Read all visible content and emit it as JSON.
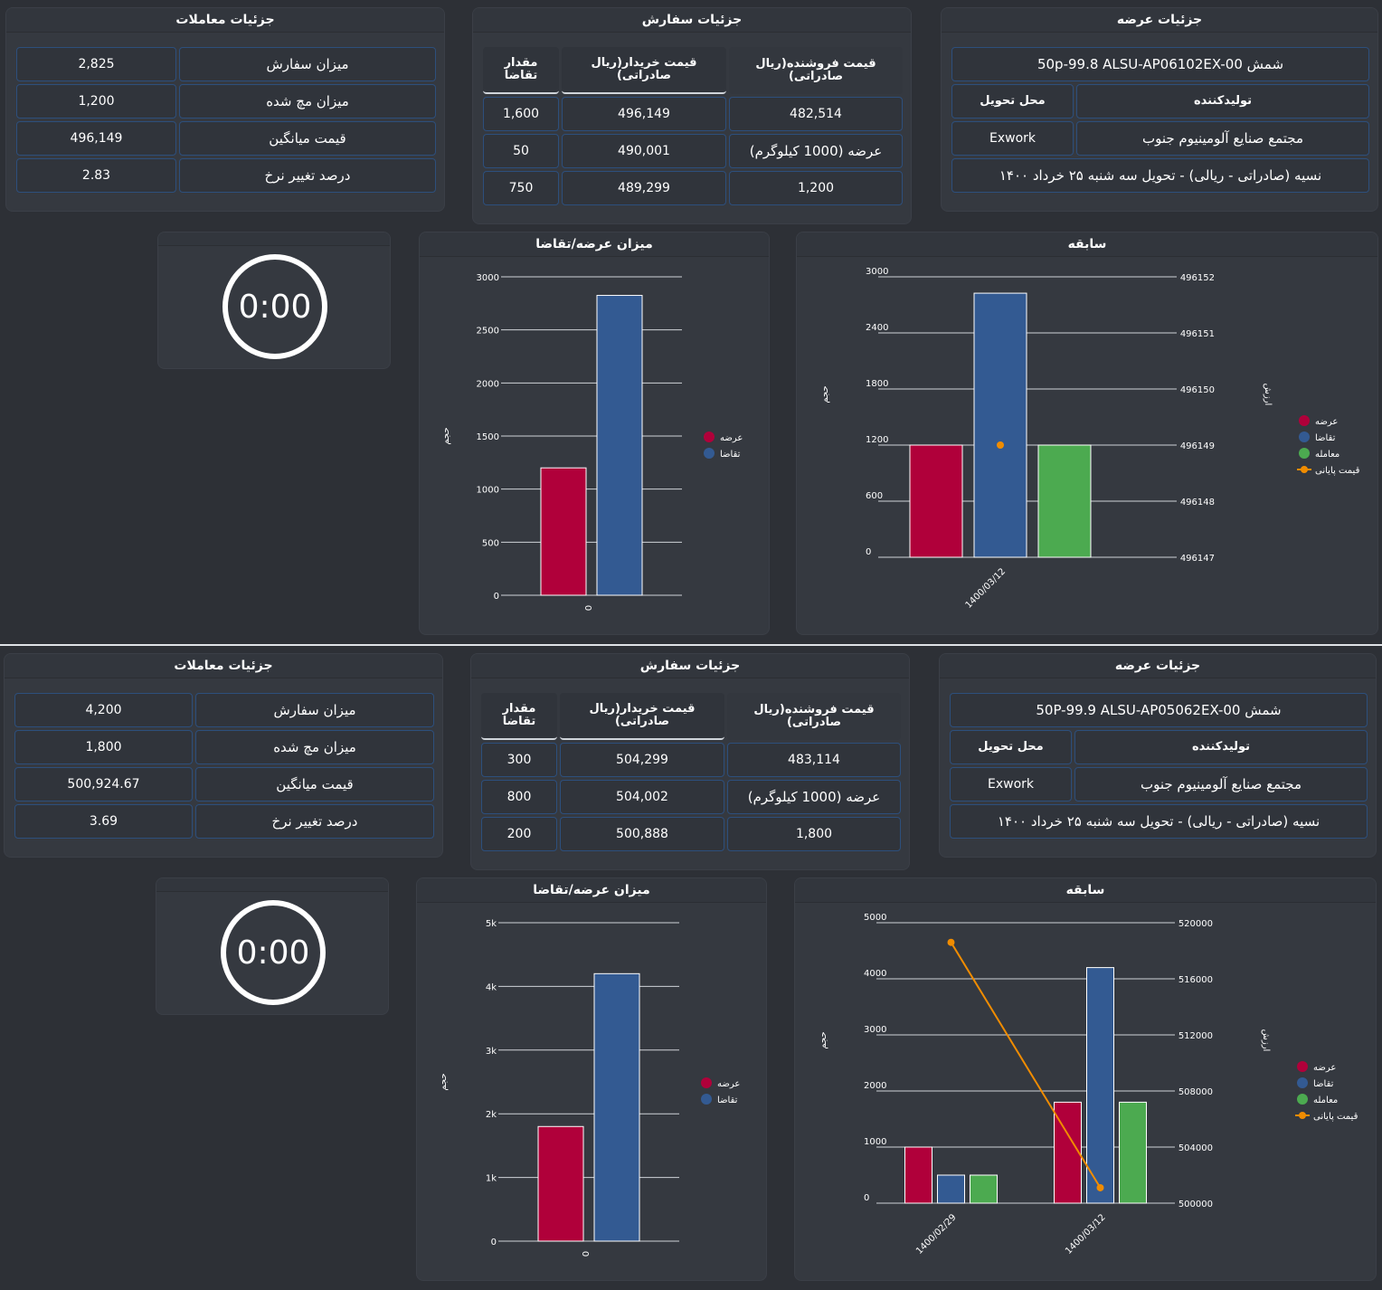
{
  "sections": [
    {
      "trade": {
        "title": "جزئیات معاملات",
        "rows": [
          {
            "label": "میزان سفارش",
            "value": "2,825"
          },
          {
            "label": "میزان مچ شده",
            "value": "1,200"
          },
          {
            "label": "قیمت میانگین",
            "value": "496,149"
          },
          {
            "label": "درصد تغییر نرخ",
            "value": "2.83"
          }
        ]
      },
      "order": {
        "title": "جزئیات سفارش",
        "headers": [
          "قیمت فروشنده(ریال صادراتی)",
          "قیمت خریدار(ریال صادراتی)",
          "مقدار تقاضا"
        ],
        "rows": [
          [
            "482,514",
            "496,149",
            "1,600"
          ],
          [
            "عرضه (1000 کیلوگرم)",
            "490,001",
            "50"
          ],
          [
            "1,200",
            "489,299",
            "750"
          ]
        ]
      },
      "offer": {
        "title": "جزئیات عرضه",
        "product": "شمش 50p-99.8 ALSU-AP06102EX-00",
        "producer_label": "تولیدکننده",
        "delivery_label": "محل تحویل",
        "producer": "مجتمع صنایع آلومینیوم جنوب",
        "delivery": "Exwork",
        "terms": "نسیه (صادراتی - ریالی) - تحویل سه شنبه ۲۵ خرداد ۱۴۰۰"
      },
      "timer": {
        "value": "0:00"
      },
      "supply_demand": {
        "title": "میزان عرضه/تقاضا",
        "chart_data": {
          "type": "bar",
          "categories": [
            "0"
          ],
          "series": [
            {
              "name": "عرضه",
              "values": [
                1200
              ],
              "color": "#b0003a"
            },
            {
              "name": "تقاضا",
              "values": [
                2825
              ],
              "color": "#335a92"
            }
          ],
          "ylabel": "حجم",
          "yticks": [
            "0",
            "500",
            "1000",
            "1500",
            "2000",
            "2500",
            "3000"
          ],
          "ylim": [
            0,
            3000
          ],
          "legend": "right"
        }
      },
      "history": {
        "title": "سابقه",
        "chart_data": {
          "type": "bar",
          "categories": [
            "1400/03/12"
          ],
          "series": [
            {
              "name": "عرضه",
              "values": [
                1200
              ],
              "color": "#b0003a"
            },
            {
              "name": "تقاضا",
              "values": [
                2825
              ],
              "color": "#335a92"
            },
            {
              "name": "معامله",
              "values": [
                1200
              ],
              "color": "#4caa50"
            },
            {
              "name": "قیمت پایانی",
              "type": "line",
              "axis": "right",
              "values": [
                496149
              ],
              "color": "#f08c00"
            }
          ],
          "ylabel": "حجم",
          "y2label": "ارزش",
          "yticks": [
            "0",
            "600",
            "1200",
            "1800",
            "2400",
            "3000"
          ],
          "ylim": [
            0,
            3000
          ],
          "y2ticks": [
            "496147",
            "496148",
            "496149",
            "496150",
            "496151",
            "496152"
          ],
          "y2lim": [
            496147,
            496152
          ],
          "legend": "right"
        }
      }
    },
    {
      "trade": {
        "title": "جزئیات معاملات",
        "rows": [
          {
            "label": "میزان سفارش",
            "value": "4,200"
          },
          {
            "label": "میزان مچ شده",
            "value": "1,800"
          },
          {
            "label": "قیمت میانگین",
            "value": "500,924.67"
          },
          {
            "label": "درصد تغییر نرخ",
            "value": "3.69"
          }
        ]
      },
      "order": {
        "title": "جزئیات سفارش",
        "headers": [
          "قیمت فروشنده(ریال صادراتی)",
          "قیمت خریدار(ریال صادراتی)",
          "مقدار تقاضا"
        ],
        "rows": [
          [
            "483,114",
            "504,299",
            "300"
          ],
          [
            "عرضه (1000 کیلوگرم)",
            "504,002",
            "800"
          ],
          [
            "1,800",
            "500,888",
            "200"
          ]
        ]
      },
      "offer": {
        "title": "جزئیات عرضه",
        "product": "شمش 50P-99.9 ALSU-AP05062EX-00",
        "producer_label": "تولیدکننده",
        "delivery_label": "محل تحویل",
        "producer": "مجتمع صنایع آلومینیوم جنوب",
        "delivery": "Exwork",
        "terms": "نسیه (صادراتی - ریالی) - تحویل سه شنبه ۲۵ خرداد ۱۴۰۰"
      },
      "timer": {
        "value": "0:00"
      },
      "supply_demand": {
        "title": "میزان عرضه/تقاضا",
        "chart_data": {
          "type": "bar",
          "categories": [
            "0"
          ],
          "series": [
            {
              "name": "عرضه",
              "values": [
                1800
              ],
              "color": "#b0003a"
            },
            {
              "name": "تقاضا",
              "values": [
                4200
              ],
              "color": "#335a92"
            }
          ],
          "ylabel": "حجم",
          "yticks": [
            "0",
            "1k",
            "2k",
            "3k",
            "4k",
            "5k"
          ],
          "ylim": [
            0,
            5000
          ],
          "legend": "right"
        }
      },
      "history": {
        "title": "سابقه",
        "chart_data": {
          "type": "bar",
          "categories": [
            "1400/02/29",
            "1400/03/12"
          ],
          "series": [
            {
              "name": "عرضه",
              "values": [
                1000,
                1800
              ],
              "color": "#b0003a"
            },
            {
              "name": "تقاضا",
              "values": [
                500,
                4200
              ],
              "color": "#335a92"
            },
            {
              "name": "معامله",
              "values": [
                500,
                1800
              ],
              "color": "#4caa50"
            },
            {
              "name": "قیمت پایانی",
              "type": "line",
              "axis": "right",
              "values": [
                518600,
                501100
              ],
              "color": "#f08c00"
            }
          ],
          "ylabel": "حجم",
          "y2label": "ارزش",
          "yticks": [
            "0",
            "1000",
            "2000",
            "3000",
            "4000",
            "5000"
          ],
          "ylim": [
            0,
            5000
          ],
          "y2ticks": [
            "500000",
            "504000",
            "508000",
            "512000",
            "516000",
            "520000"
          ],
          "y2lim": [
            500000,
            520000
          ],
          "legend": "right"
        }
      }
    }
  ]
}
